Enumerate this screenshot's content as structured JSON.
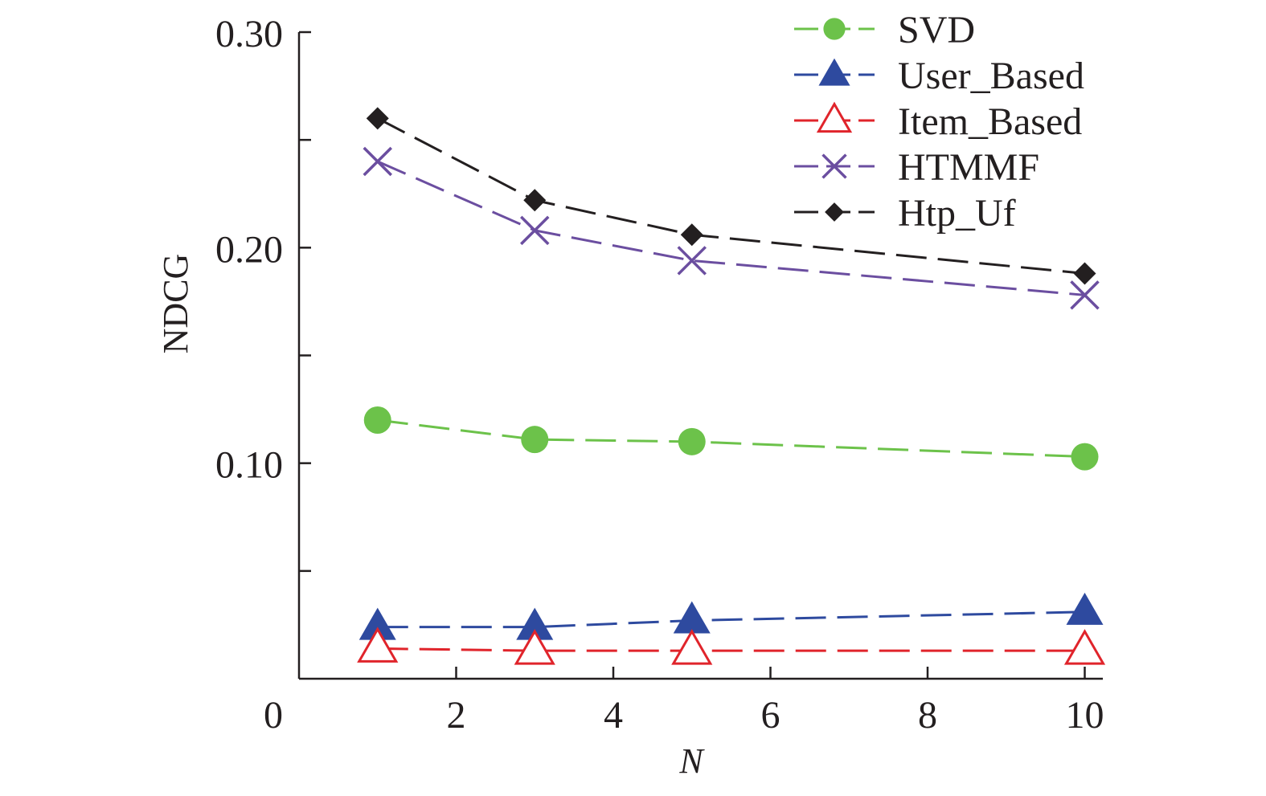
{
  "chart_data": {
    "type": "line",
    "title": "",
    "xlabel": "N",
    "ylabel": "NDCG",
    "xlim": [
      0,
      10.2
    ],
    "ylim": [
      0,
      0.3
    ],
    "x_ticks": [
      0,
      2,
      4,
      6,
      8,
      10
    ],
    "x_tick_labels": [
      "0",
      "2",
      "4",
      "6",
      "8",
      "10"
    ],
    "y_ticks": [
      0,
      0.05,
      0.1,
      0.15,
      0.2,
      0.25,
      0.3
    ],
    "y_tick_labels": [
      "",
      "",
      "0.10",
      "",
      "0.20",
      "",
      "0.30"
    ],
    "x": [
      1,
      3,
      5,
      10
    ],
    "legend_position": "top-right",
    "series": [
      {
        "name": "SVD",
        "marker": "circle-filled",
        "color": "#6cc24a",
        "values": [
          0.12,
          0.111,
          0.11,
          0.103
        ]
      },
      {
        "name": "User_Based",
        "marker": "triangle-filled",
        "color": "#2e4a9f",
        "values": [
          0.024,
          0.024,
          0.027,
          0.031
        ]
      },
      {
        "name": "Item_Based",
        "marker": "triangle-open",
        "color": "#e0242b",
        "values": [
          0.014,
          0.013,
          0.013,
          0.013
        ]
      },
      {
        "name": "HTMMF",
        "marker": "cross",
        "color": "#6b4ea0",
        "values": [
          0.24,
          0.208,
          0.194,
          0.178
        ]
      },
      {
        "name": "Htp_Uf",
        "marker": "diamond-filled",
        "color": "#231f20",
        "values": [
          0.26,
          0.222,
          0.206,
          0.188
        ]
      }
    ]
  }
}
